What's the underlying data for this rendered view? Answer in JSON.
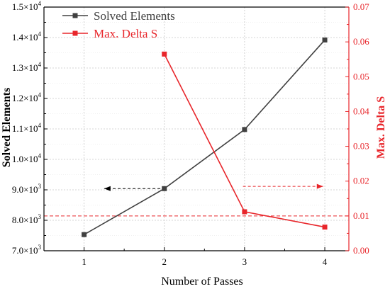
{
  "colors": {
    "left_series": "#404040",
    "right_series": "#e8262b",
    "left_axis": "#000000",
    "right_axis": "#e8262b",
    "grid": "#c8c8c8"
  },
  "chart_data": {
    "type": "line",
    "title": "",
    "xlabel": "Number of Passes",
    "ylabel": "Solved Elements",
    "y2label": "Max. Delta S",
    "x": [
      1,
      2,
      3,
      4
    ],
    "xticks": [
      "1",
      "2",
      "3",
      "4"
    ],
    "xlim": [
      0.5,
      4.3
    ],
    "ylim": [
      7000,
      15000
    ],
    "y2lim": [
      0,
      0.07
    ],
    "yticks": [
      {
        "value": 7000,
        "mant": "7.0×10",
        "exp": "3"
      },
      {
        "value": 8000,
        "mant": "8.0×10",
        "exp": "3"
      },
      {
        "value": 9000,
        "mant": "9.0×10",
        "exp": "3"
      },
      {
        "value": 10000,
        "mant": "1.0×10",
        "exp": "4"
      },
      {
        "value": 11000,
        "mant": "1.1×10",
        "exp": "4"
      },
      {
        "value": 12000,
        "mant": "1.2×10",
        "exp": "4"
      },
      {
        "value": 13000,
        "mant": "1.3×10",
        "exp": "4"
      },
      {
        "value": 14000,
        "mant": "1.4×10",
        "exp": "4"
      },
      {
        "value": 15000,
        "mant": "1.5×10",
        "exp": "4"
      }
    ],
    "y2ticks": [
      "0.00",
      "0.01",
      "0.02",
      "0.03",
      "0.04",
      "0.05",
      "0.06",
      "0.07"
    ],
    "grid": true,
    "legend": "top-left",
    "series": [
      {
        "name": "Solved Elements",
        "axis": "left",
        "x": [
          1,
          2,
          3,
          4
        ],
        "values": [
          7530,
          9040,
          10980,
          13920
        ]
      },
      {
        "name": "Max. Delta S",
        "axis": "right",
        "x": [
          2,
          3,
          4
        ],
        "values": [
          0.0565,
          0.0112,
          0.0068
        ]
      }
    ],
    "reference_line": {
      "axis": "right",
      "value": 0.01,
      "style": "dashed"
    },
    "annotations": [
      {
        "type": "arrow",
        "direction": "left",
        "axis": "left",
        "y": 9040,
        "x_from": 1.95,
        "x_to": 1.25
      },
      {
        "type": "arrow",
        "direction": "right",
        "axis": "right",
        "y": 0.0185,
        "x_from": 2.98,
        "x_to": 3.98
      }
    ]
  }
}
